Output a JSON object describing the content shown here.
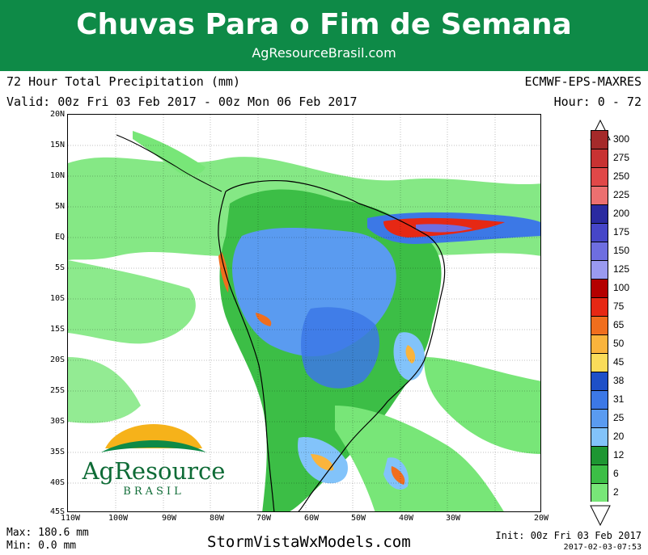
{
  "banner": {
    "title": "Chuvas Para o Fim de Semana",
    "url": "AgResourceBrasil.com"
  },
  "header": {
    "title": "72 Hour Total Precipitation (mm)",
    "model": "ECMWF-EPS-MAXRES",
    "valid": "Valid: 00z Fri 03 Feb 2017 - 00z Mon 06 Feb 2017",
    "hour": "Hour: 0 - 72"
  },
  "map": {
    "lat_labels": [
      "20N",
      "15N",
      "10N",
      "5N",
      "EQ",
      "5S",
      "10S",
      "15S",
      "20S",
      "25S",
      "30S",
      "35S",
      "40S",
      "45S"
    ],
    "lon_labels": [
      "110W",
      "100W",
      "90W",
      "80W",
      "70W",
      "60W",
      "50W",
      "40W",
      "30W",
      "20W"
    ]
  },
  "legend": {
    "levels": [
      {
        "label": "300",
        "color": "#a52a2a"
      },
      {
        "label": "275",
        "color": "#c83232"
      },
      {
        "label": "250",
        "color": "#e04848"
      },
      {
        "label": "225",
        "color": "#ec7070"
      },
      {
        "label": "200",
        "color": "#2a2aa0"
      },
      {
        "label": "175",
        "color": "#4646c8"
      },
      {
        "label": "150",
        "color": "#6e6ee0"
      },
      {
        "label": "125",
        "color": "#9a9af0"
      },
      {
        "label": "100",
        "color": "#b40000"
      },
      {
        "label": "75",
        "color": "#e62814"
      },
      {
        "label": "65",
        "color": "#f06e1e"
      },
      {
        "label": "50",
        "color": "#fab43c"
      },
      {
        "label": "45",
        "color": "#fadc5a"
      },
      {
        "label": "38",
        "color": "#1e50c8"
      },
      {
        "label": "31",
        "color": "#3c78e6"
      },
      {
        "label": "25",
        "color": "#5a9bf0"
      },
      {
        "label": "20",
        "color": "#82c3fa"
      },
      {
        "label": "12",
        "color": "#1e9632"
      },
      {
        "label": "6",
        "color": "#3cbe46"
      },
      {
        "label": "2",
        "color": "#78e678"
      }
    ]
  },
  "footer": {
    "max": "Max: 180.6 mm",
    "min": "Min: 0.0 mm",
    "source": "StormVistaWxModels.com",
    "init": "Init: 00z Fri 03 Feb 2017",
    "stamp": "2017-02-03-07:53"
  },
  "logo": {
    "name": "AgResource",
    "sub": "BRASIL"
  }
}
